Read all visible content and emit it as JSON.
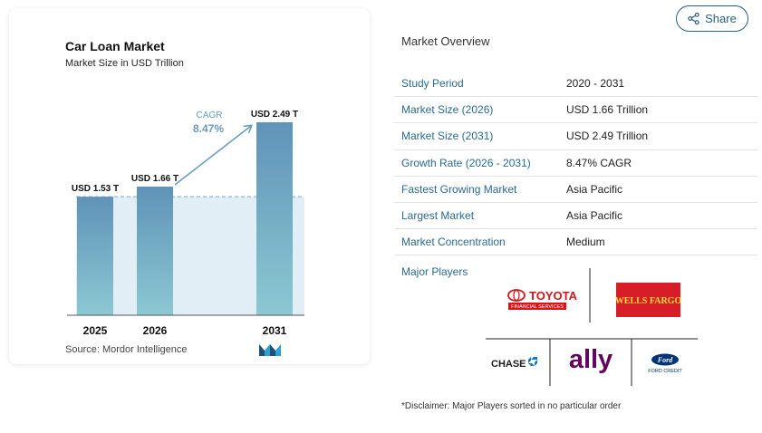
{
  "header": {
    "share_label": "Share",
    "share_icon": "share-icon"
  },
  "chart": {
    "title": "Car Loan Market",
    "subtitle": "Market Size in USD Trillion",
    "source": "Source: Mordor Intelligence",
    "cagr_label": "CAGR",
    "cagr_value": "8.47%",
    "colors": {
      "bar_top": "#5f93b8",
      "bar_bottom": "#8cc8d2",
      "shade": "#e2eef6",
      "arrow": "#6a9cc0"
    }
  },
  "chart_data": {
    "type": "bar",
    "title": "Car Loan Market",
    "subtitle": "Market Size in USD Trillion",
    "categories": [
      "2025",
      "2026",
      "2031"
    ],
    "values": [
      1.53,
      1.66,
      2.49
    ],
    "data_labels": [
      "USD 1.53 T",
      "USD 1.66 T",
      "USD 2.49 T"
    ],
    "xlabel": "",
    "ylabel": "",
    "ylim": [
      0,
      2.49
    ],
    "grid": false,
    "annotation": {
      "text": "CAGR 8.47%"
    }
  },
  "overview": {
    "title": "Market Overview",
    "rows": [
      {
        "label": "Study Period",
        "value": "2020 - 2031"
      },
      {
        "label": "Market Size (2026)",
        "value": "USD 1.66 Trillion"
      },
      {
        "label": "Market Size (2031)",
        "value": "USD 2.49 Trillion"
      },
      {
        "label": "Growth Rate (2026 - 2031)",
        "value": "8.47% CAGR"
      },
      {
        "label": "Fastest Growing Market",
        "value": "Asia Pacific"
      },
      {
        "label": "Largest Market",
        "value": "Asia Pacific"
      },
      {
        "label": "Market Concentration",
        "value": "Medium"
      }
    ]
  },
  "players": {
    "label": "Major Players",
    "logos": {
      "toyota_name": "TOYOTA",
      "toyota_sub": "FINANCIAL SERVICES",
      "wells_fargo": "WELLS FARGO",
      "chase": "CHASE",
      "ally": "ally",
      "ford": "Ford",
      "ford_sub": "FORD CREDIT"
    },
    "colors": {
      "toyota": "#d7141a",
      "wells_fargo": "#d71e28",
      "chase": "#117aca",
      "ally": "#650360",
      "ford": "#003478"
    }
  },
  "disclaimer": "*Disclaimer: Major Players sorted in no particular order"
}
